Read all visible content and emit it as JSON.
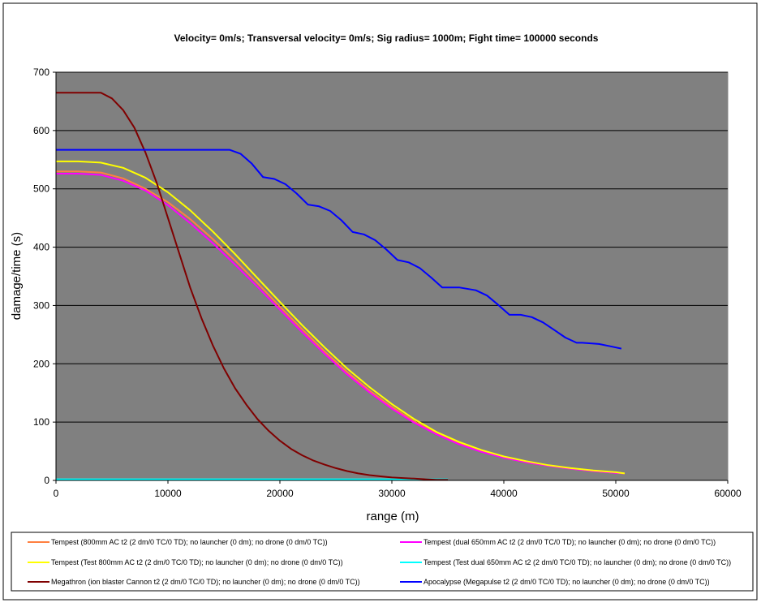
{
  "chart_data": {
    "type": "line",
    "title": "Velocity= 0m/s; Transversal velocity= 0m/s; Sig radius= 1000m; Fight time= 100000 seconds",
    "xlabel": "range (m)",
    "ylabel": "damage/time (s)",
    "xlim": [
      0,
      60000
    ],
    "ylim": [
      0,
      700
    ],
    "x_ticks": [
      0,
      10000,
      20000,
      30000,
      40000,
      50000,
      60000
    ],
    "y_ticks": [
      0,
      100,
      200,
      300,
      400,
      500,
      600,
      700
    ],
    "grid": "horizontal",
    "plot_background": "#808080",
    "legend_position": "bottom",
    "series": [
      {
        "name": "Tempest (800mm AC t2 (2 dm/0 TC/0 TD); no launcher (0 dm); no drone (0 dm/0 TC))",
        "color": "#ff8040",
        "x": [
          0,
          2000,
          4000,
          6000,
          8000,
          10000,
          12000,
          14000,
          16000,
          18000,
          20000,
          22000,
          24000,
          26000,
          28000,
          30000,
          32000,
          34000,
          36000,
          38000,
          40000,
          42000,
          44000,
          46000,
          48000,
          50000,
          50800
        ],
        "y": [
          530,
          530,
          528,
          518,
          500,
          477,
          448,
          414,
          377,
          338,
          298,
          259,
          221,
          186,
          154,
          126,
          101,
          80,
          63,
          50,
          39,
          31,
          25,
          20,
          16,
          13,
          12
        ]
      },
      {
        "name": "Tempest (dual 650mm AC t2 (2 dm/0 TC/0 TD); no launcher (0 dm); no drone (0 dm/0 TC))",
        "color": "#ff00ff",
        "x": [
          0,
          2000,
          4000,
          6000,
          8000,
          10000,
          12000,
          14000,
          16000,
          18000,
          20000,
          22000,
          24000,
          26000,
          28000,
          30000,
          32000,
          34000,
          36000,
          38000,
          40000,
          42000,
          44000,
          46000,
          48000,
          50000,
          50800
        ],
        "y": [
          526,
          526,
          524,
          514,
          497,
          472,
          441,
          407,
          370,
          332,
          293,
          254,
          217,
          182,
          151,
          123,
          99,
          79,
          62,
          49,
          39,
          31,
          25,
          20,
          16,
          13,
          12
        ]
      },
      {
        "name": "Tempest (Test 800mm AC t2 (2 dm/0 TC/0 TD); no launcher (0 dm); no drone (0 dm/0 TC))",
        "color": "#ffff00",
        "x": [
          0,
          2000,
          4000,
          6000,
          8000,
          10000,
          12000,
          14000,
          16000,
          18000,
          20000,
          22000,
          24000,
          26000,
          28000,
          30000,
          32000,
          34000,
          36000,
          38000,
          40000,
          42000,
          44000,
          46000,
          48000,
          50000,
          50800
        ],
        "y": [
          547,
          547,
          545,
          536,
          519,
          494,
          463,
          427,
          388,
          347,
          306,
          266,
          228,
          192,
          160,
          131,
          105,
          83,
          66,
          52,
          41,
          33,
          26,
          21,
          17,
          14,
          12
        ]
      },
      {
        "name": "Tempest (Test dual 650mm AC t2 (2 dm/0 TC/0 TD); no launcher (0 dm); no drone (0 dm/0 TC))",
        "color": "#00ffff",
        "x": [
          0,
          35000
        ],
        "y": [
          2,
          2
        ]
      },
      {
        "name": "Megathron (ion blaster Cannon t2 (2 dm/0 TC/0 TD); no launcher (0 dm); no drone (0 dm/0 TC))",
        "color": "#800000",
        "x": [
          0,
          2000,
          4000,
          5000,
          6000,
          7000,
          8000,
          9000,
          10000,
          11000,
          12000,
          13000,
          14000,
          15000,
          16000,
          17000,
          18000,
          19000,
          20000,
          21000,
          22000,
          23000,
          24000,
          25000,
          26000,
          27000,
          28000,
          29000,
          30000,
          31000,
          32000,
          33000,
          34000,
          35000
        ],
        "y": [
          665,
          665,
          665,
          655,
          635,
          605,
          562,
          510,
          450,
          390,
          330,
          278,
          232,
          192,
          158,
          130,
          105,
          85,
          68,
          54,
          43,
          34,
          27,
          21,
          16,
          12,
          9,
          7,
          5,
          4,
          3,
          2,
          1,
          1
        ]
      },
      {
        "name": "Apocalypse (Megapulse t2 (2 dm/0 TC/0 TD); no launcher (0 dm); no drone (0 dm/0 TC))",
        "color": "#0000ff",
        "x": [
          0,
          15500,
          16500,
          17500,
          18500,
          19500,
          20500,
          21500,
          22500,
          23500,
          24500,
          25500,
          26500,
          27500,
          28500,
          29500,
          30500,
          31500,
          32500,
          33500,
          34500,
          36000,
          37500,
          38500,
          39500,
          40500,
          41500,
          42500,
          43500,
          44500,
          45500,
          46500,
          47000,
          48500,
          49500,
          50500
        ],
        "y": [
          567,
          567,
          560,
          543,
          520,
          517,
          508,
          492,
          473,
          470,
          462,
          446,
          426,
          422,
          412,
          396,
          378,
          374,
          364,
          348,
          331,
          331,
          326,
          317,
          301,
          284,
          284,
          280,
          271,
          258,
          245,
          236,
          236,
          234,
          230,
          226
        ]
      }
    ]
  }
}
